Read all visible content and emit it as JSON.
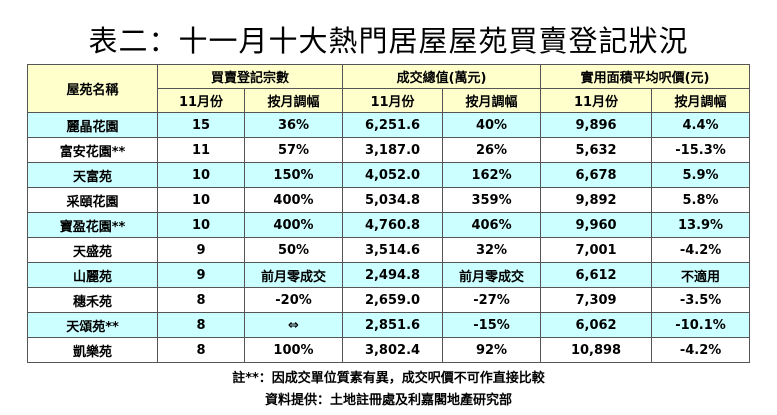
{
  "title": "表二：十一月十大熱門居屋屋苑買賣登記狀況",
  "headers": {
    "estate": "屋苑名稱",
    "groups": [
      "買賣登記宗數",
      "成交總值(萬元)",
      "實用面積平均呎價(元)"
    ],
    "sub": [
      "11月份",
      "按月調幅",
      "11月份",
      "按月調幅",
      "11月份",
      "按月調幅"
    ]
  },
  "rows": [
    {
      "name": "麗晶花園",
      "reg": "15",
      "reg_chg": "36%",
      "val": "6,251.6",
      "val_chg": "40%",
      "psf": "9,896",
      "psf_chg": "4.4%"
    },
    {
      "name": "富安花園**",
      "reg": "11",
      "reg_chg": "57%",
      "val": "3,187.0",
      "val_chg": "26%",
      "psf": "5,632",
      "psf_chg": "-15.3%"
    },
    {
      "name": "天富苑",
      "reg": "10",
      "reg_chg": "150%",
      "val": "4,052.0",
      "val_chg": "162%",
      "psf": "6,678",
      "psf_chg": "5.9%"
    },
    {
      "name": "采頤花園",
      "reg": "10",
      "reg_chg": "400%",
      "val": "5,034.8",
      "val_chg": "359%",
      "psf": "9,892",
      "psf_chg": "5.8%"
    },
    {
      "name": "寶盈花園**",
      "reg": "10",
      "reg_chg": "400%",
      "val": "4,760.8",
      "val_chg": "406%",
      "psf": "9,960",
      "psf_chg": "13.9%"
    },
    {
      "name": "天盛苑",
      "reg": "9",
      "reg_chg": "50%",
      "val": "3,514.6",
      "val_chg": "32%",
      "psf": "7,001",
      "psf_chg": "-4.2%"
    },
    {
      "name": "山麗苑",
      "reg": "9",
      "reg_chg": "前月零成交",
      "val": "2,494.8",
      "val_chg": "前月零成交",
      "psf": "6,612",
      "psf_chg": "不適用"
    },
    {
      "name": "穗禾苑",
      "reg": "8",
      "reg_chg": "-20%",
      "val": "2,659.0",
      "val_chg": "-27%",
      "psf": "7,309",
      "psf_chg": "-3.5%"
    },
    {
      "name": "天頌苑**",
      "reg": "8",
      "reg_chg": "⇔",
      "val": "2,851.6",
      "val_chg": "-15%",
      "psf": "6,062",
      "psf_chg": "-10.1%"
    },
    {
      "name": "凱樂苑",
      "reg": "8",
      "reg_chg": "100%",
      "val": "3,802.4",
      "val_chg": "92%",
      "psf": "10,898",
      "psf_chg": "-4.2%"
    }
  ],
  "notes": {
    "note1": "註**：因成交單位質素有異，成交呎價不可作直接比較",
    "note2": "資料提供：土地註冊處及利嘉閣地產研究部"
  }
}
